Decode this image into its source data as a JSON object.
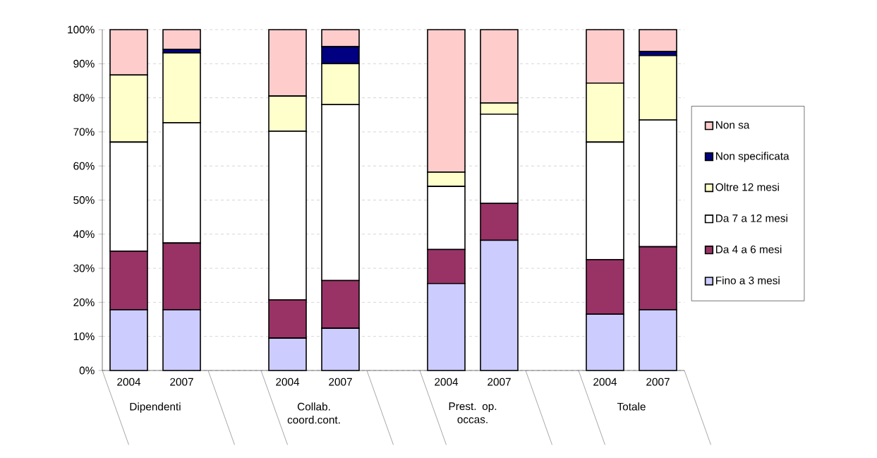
{
  "chart_data": {
    "type": "bar",
    "stacked": true,
    "categories": [
      "2004",
      "2007",
      null,
      "2004",
      "2007",
      null,
      "2004",
      "2007",
      null,
      "2004",
      "2007"
    ],
    "series": [
      {
        "name": "Fino a 3 mesi",
        "color": "#ccccff",
        "values": [
          17.8,
          17.8,
          null,
          9.5,
          12.4,
          null,
          25.5,
          38.2,
          null,
          16.5,
          17.8
        ]
      },
      {
        "name": "Da 4 a 6 mesi",
        "color": "#993366",
        "values": [
          17.2,
          19.6,
          null,
          11.2,
          14.0,
          null,
          10.0,
          10.8,
          null,
          16.0,
          18.5
        ]
      },
      {
        "name": "Da 7 a 12 mesi",
        "color": "#ffffff",
        "values": [
          32.0,
          35.3,
          null,
          49.5,
          51.6,
          null,
          18.5,
          26.2,
          null,
          34.5,
          37.2
        ]
      },
      {
        "name": "Oltre 12 mesi",
        "color": "#ffffcc",
        "values": [
          19.7,
          20.5,
          null,
          10.3,
          12.0,
          null,
          4.2,
          3.3,
          null,
          17.3,
          18.9
        ]
      },
      {
        "name": "Non specificata",
        "color": "#000080",
        "values": [
          0,
          1.0,
          null,
          0,
          5.0,
          null,
          0,
          0,
          null,
          0,
          1.2
        ]
      },
      {
        "name": "Non sa",
        "color": "#ffcccc",
        "values": [
          13.3,
          5.8,
          null,
          19.5,
          5.0,
          null,
          41.8,
          21.5,
          null,
          15.7,
          6.4
        ]
      }
    ],
    "ylim": [
      0,
      100
    ],
    "yticks": [
      {
        "value": 0,
        "label": "0%"
      },
      {
        "value": 10,
        "label": "10%"
      },
      {
        "value": 20,
        "label": "20%"
      },
      {
        "value": 30,
        "label": "30%"
      },
      {
        "value": 40,
        "label": "40%"
      },
      {
        "value": 50,
        "label": "50%"
      },
      {
        "value": 60,
        "label": "60%"
      },
      {
        "value": 70,
        "label": "70%"
      },
      {
        "value": 80,
        "label": "80%"
      },
      {
        "value": 90,
        "label": "90%"
      },
      {
        "value": 100,
        "label": "100%"
      }
    ],
    "grid": "y",
    "legend": "right",
    "annotations": [
      "Dipendenti",
      "Collab. coord.cont.",
      "Prest. op. occas.",
      "Totale"
    ]
  }
}
